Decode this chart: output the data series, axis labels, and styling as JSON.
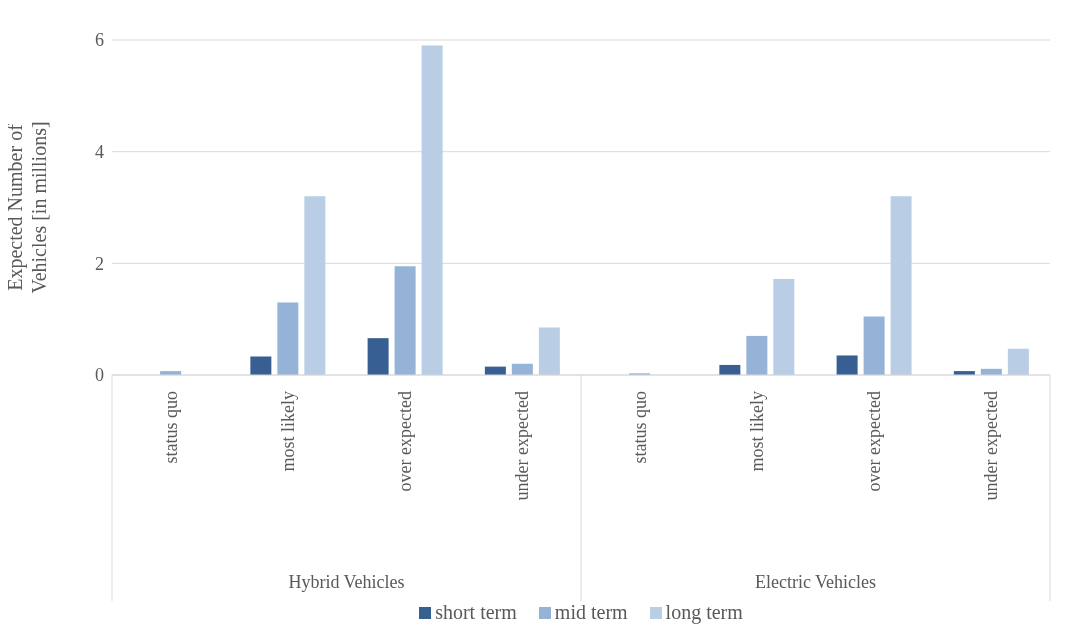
{
  "chart_data": {
    "type": "bar",
    "ylabel": "Expected Number of Vehicles [in millions]",
    "categories": [
      "status quo",
      "most likely",
      "over expected",
      "under expected",
      "status quo",
      "most likely",
      "over expected",
      "under expected"
    ],
    "annotations": [
      "Hybrid Vehicles",
      "Electric Vehicles"
    ],
    "series": [
      {
        "name": "short term",
        "color": "#375f92",
        "values": [
          0,
          0.33,
          0.66,
          0.15,
          0,
          0.18,
          0.35,
          0.07
        ]
      },
      {
        "name": "mid term",
        "color": "#95b3d7",
        "values": [
          0.07,
          1.3,
          1.95,
          0.2,
          0.03,
          0.7,
          1.05,
          0.11
        ]
      },
      {
        "name": "long term",
        "color": "#b9cde5",
        "values": [
          0,
          3.2,
          5.9,
          0.85,
          0,
          1.72,
          3.2,
          0.47
        ]
      }
    ],
    "ylim": [
      0,
      6
    ],
    "yticks": [
      0,
      2,
      4,
      6
    ],
    "grid": "y",
    "legend": "bottom"
  }
}
